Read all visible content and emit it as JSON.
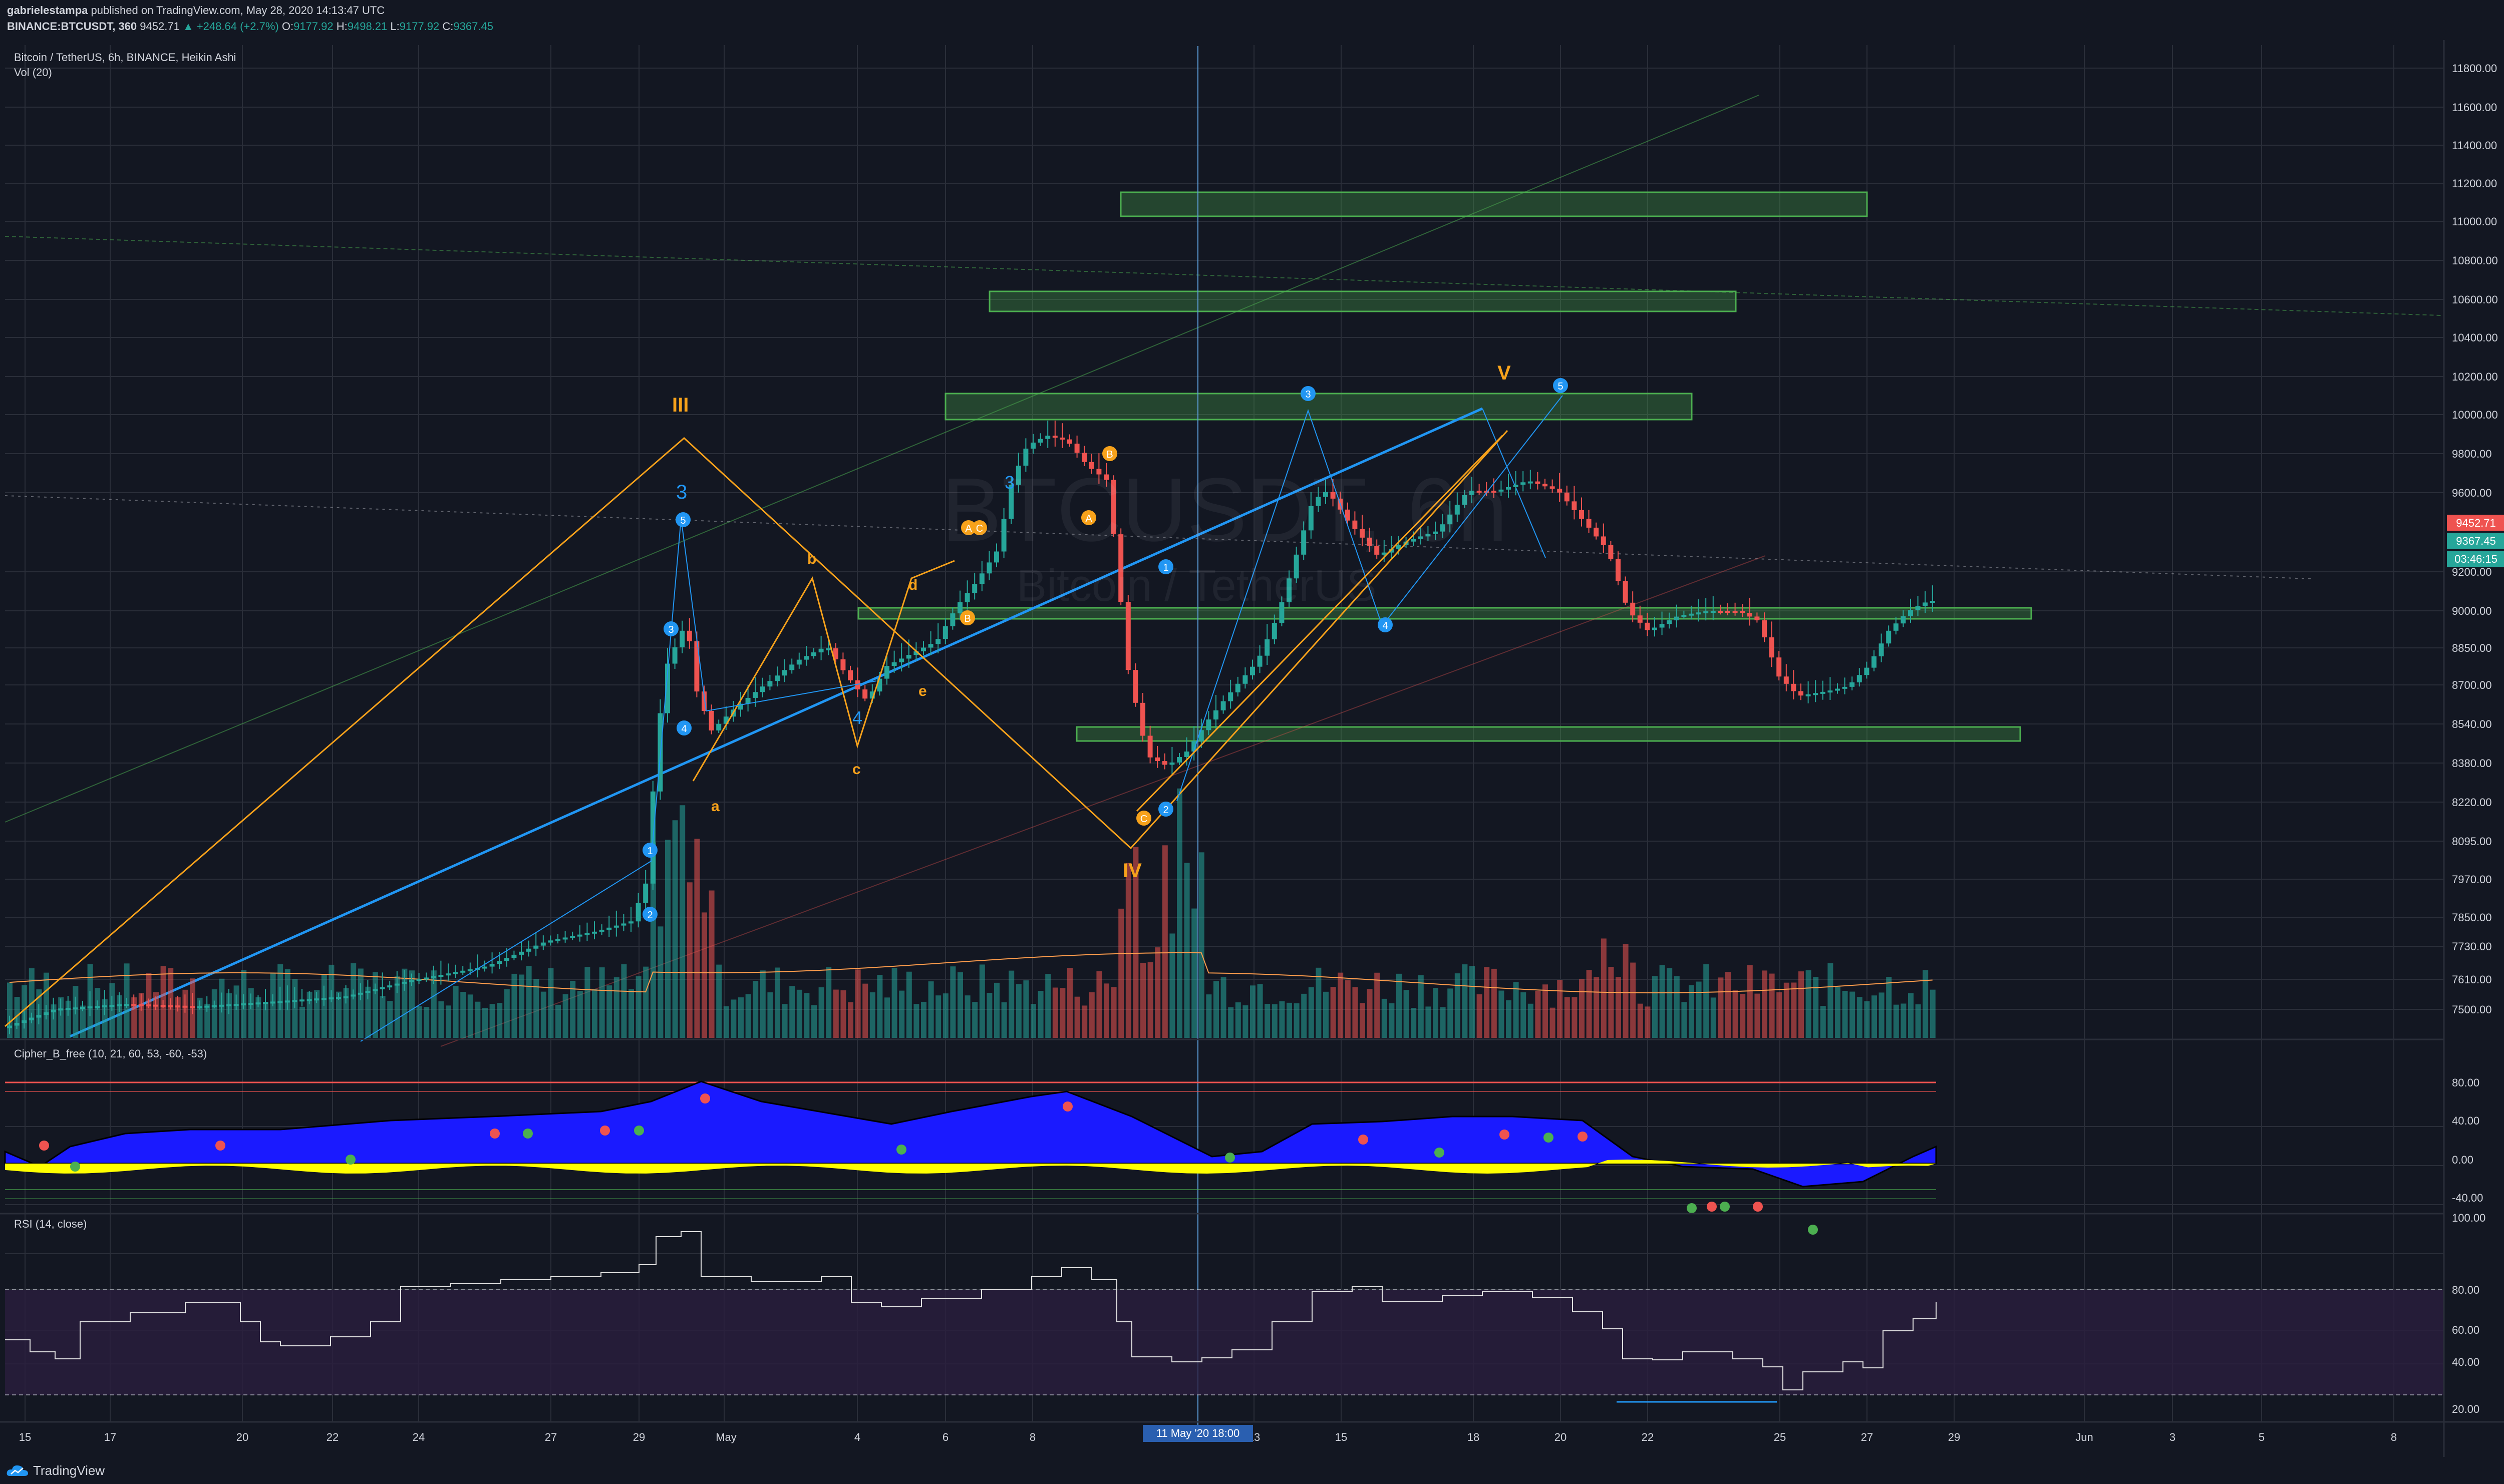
{
  "header": {
    "publisher": "gabrielestampa",
    "published_text": "published on TradingView.com, May 28, 2020 14:13:47 UTC",
    "symbol": "BINANCE:BTCUSDT, 360",
    "last": "9452.71",
    "change": "▲ +248.64 (+2.7%)",
    "o_label": "O:",
    "o_value": "9177.92",
    "h_label": "H:",
    "h_value": "9498.21",
    "l_label": "L:",
    "l_value": "9177.92",
    "c_label": "C:",
    "c_value": "9367.45"
  },
  "main_pane": {
    "title": "Bitcoin / TetherUS, 6h, BINANCE, Heikin Ashi",
    "volume_label": "Vol (20)",
    "watermark_symbol": "BTCUSDT, 6h",
    "watermark_name": "Bitcoin / TetherUS",
    "price_ticks": [
      "11800.00",
      "11600.00",
      "11400.00",
      "11200.00",
      "11000.00",
      "10800.00",
      "10600.00",
      "10400.00",
      "10200.00",
      "10000.00",
      "9800.00",
      "9600.00",
      "9200.00",
      "9000.00",
      "8850.00",
      "8700.00",
      "8540.00",
      "8380.00",
      "8220.00",
      "8095.00",
      "7970.00",
      "7850.00",
      "7730.00",
      "7610.00",
      "7500.00"
    ],
    "badges": {
      "last": "9452.71",
      "close": "9367.45",
      "countdown": "03:46:15"
    },
    "wave_labels_orange": [
      "III",
      "IV",
      "V",
      "a",
      "b",
      "c",
      "d",
      "e"
    ],
    "wave_labels_blue": [
      "3",
      "3",
      "4"
    ],
    "circle_numbers": [
      "1",
      "2",
      "3",
      "4",
      "5"
    ],
    "circle_letters": [
      "A",
      "B",
      "C"
    ]
  },
  "cipher_pane": {
    "title": "Cipher_B_free (10, 21, 60, 53, -60, -53)",
    "ticks": [
      "80.00",
      "40.00",
      "0.00",
      "-40.00"
    ]
  },
  "rsi_pane": {
    "title": "RSI (14, close)",
    "ticks": [
      "100.00",
      "80.00",
      "60.00",
      "40.00",
      "20.00"
    ]
  },
  "time_axis": {
    "labels": [
      "15",
      "17",
      "20",
      "22",
      "24",
      "27",
      "29",
      "May",
      "4",
      "6",
      "8",
      "13",
      "15",
      "18",
      "20",
      "22",
      "25",
      "27",
      "29",
      "Jun",
      "3",
      "5",
      "8"
    ],
    "crosshair_label": "11 May '20   18:00"
  },
  "footer": {
    "brand": "TradingView"
  },
  "colors": {
    "background": "#131722",
    "up": "#26a69a",
    "down": "#ef5350",
    "orange": "#f7a21b",
    "blue": "#2196f3",
    "zone": "#4caf50",
    "cipher_blue": "#1a1aff",
    "cipher_yellow": "#ffff00",
    "rsi_fill": "#2a1e3f"
  }
}
